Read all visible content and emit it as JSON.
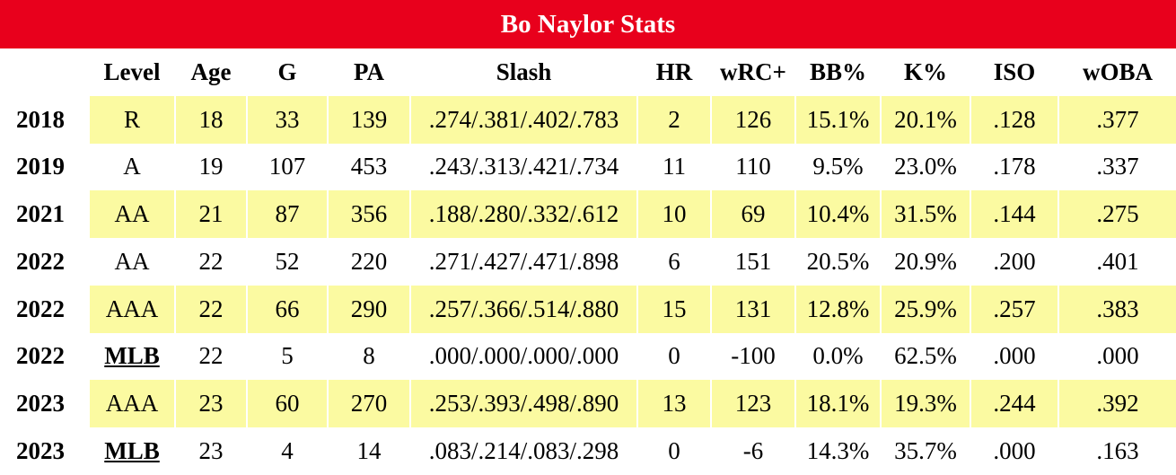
{
  "title": "Bo Naylor Stats",
  "colors": {
    "title_bg": "#e8001c",
    "highlight": "#fbfaa1"
  },
  "columns": [
    "",
    "Level",
    "Age",
    "G",
    "PA",
    "Slash",
    "HR",
    "wRC+",
    "BB%",
    "K%",
    "ISO",
    "wOBA"
  ],
  "rows": [
    {
      "year": "2018",
      "level": "R",
      "age": "18",
      "g": "33",
      "pa": "139",
      "slash": ".274/.381/.402/.783",
      "hr": "2",
      "wrc": "126",
      "bb": "15.1%",
      "k": "20.1%",
      "iso": ".128",
      "woba": ".377",
      "highlight": true,
      "mlb": false
    },
    {
      "year": "2019",
      "level": "A",
      "age": "19",
      "g": "107",
      "pa": "453",
      "slash": ".243/.313/.421/.734",
      "hr": "11",
      "wrc": "110",
      "bb": "9.5%",
      "k": "23.0%",
      "iso": ".178",
      "woba": ".337",
      "highlight": false,
      "mlb": false
    },
    {
      "year": "2021",
      "level": "AA",
      "age": "21",
      "g": "87",
      "pa": "356",
      "slash": ".188/.280/.332/.612",
      "hr": "10",
      "wrc": "69",
      "bb": "10.4%",
      "k": "31.5%",
      "iso": ".144",
      "woba": ".275",
      "highlight": true,
      "mlb": false
    },
    {
      "year": "2022",
      "level": "AA",
      "age": "22",
      "g": "52",
      "pa": "220",
      "slash": ".271/.427/.471/.898",
      "hr": "6",
      "wrc": "151",
      "bb": "20.5%",
      "k": "20.9%",
      "iso": ".200",
      "woba": ".401",
      "highlight": false,
      "mlb": false
    },
    {
      "year": "2022",
      "level": "AAA",
      "age": "22",
      "g": "66",
      "pa": "290",
      "slash": ".257/.366/.514/.880",
      "hr": "15",
      "wrc": "131",
      "bb": "12.8%",
      "k": "25.9%",
      "iso": ".257",
      "woba": ".383",
      "highlight": true,
      "mlb": false
    },
    {
      "year": "2022",
      "level": "MLB",
      "age": "22",
      "g": "5",
      "pa": "8",
      "slash": ".000/.000/.000/.000",
      "hr": "0",
      "wrc": "-100",
      "bb": "0.0%",
      "k": "62.5%",
      "iso": ".000",
      "woba": ".000",
      "highlight": false,
      "mlb": true
    },
    {
      "year": "2023",
      "level": "AAA",
      "age": "23",
      "g": "60",
      "pa": "270",
      "slash": ".253/.393/.498/.890",
      "hr": "13",
      "wrc": "123",
      "bb": "18.1%",
      "k": "19.3%",
      "iso": ".244",
      "woba": ".392",
      "highlight": true,
      "mlb": false
    },
    {
      "year": "2023",
      "level": "MLB",
      "age": "23",
      "g": "4",
      "pa": "14",
      "slash": ".083/.214/.083/.298",
      "hr": "0",
      "wrc": "-6",
      "bb": "14.3%",
      "k": "35.7%",
      "iso": ".000",
      "woba": ".163",
      "highlight": false,
      "mlb": true
    }
  ]
}
